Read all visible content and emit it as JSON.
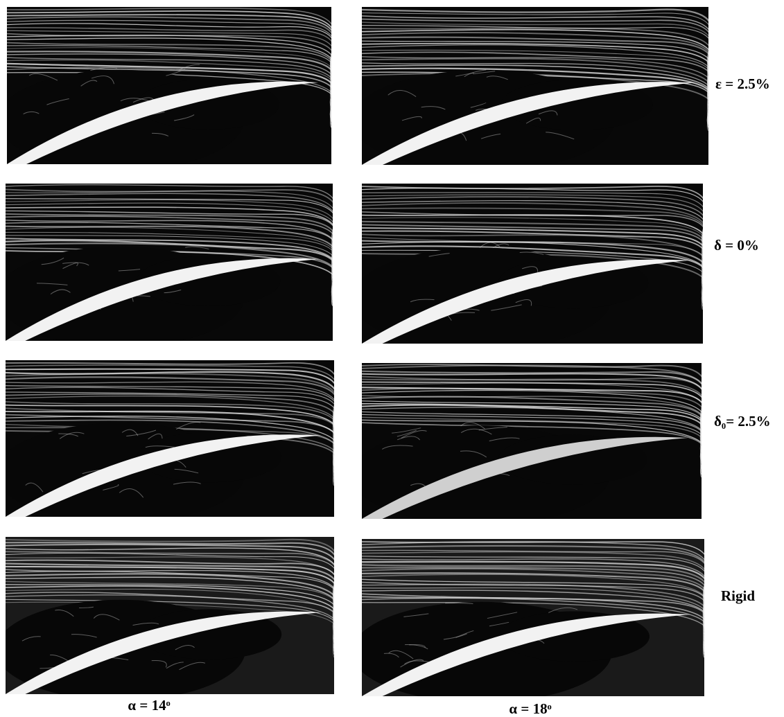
{
  "row_labels": [
    "ε = 2.5%",
    "δ = 0%",
    "δ₀= 2.5%",
    "Rigid"
  ],
  "column_labels": [
    "α = 14ᵒ",
    "α = 18ᵒ"
  ]
}
